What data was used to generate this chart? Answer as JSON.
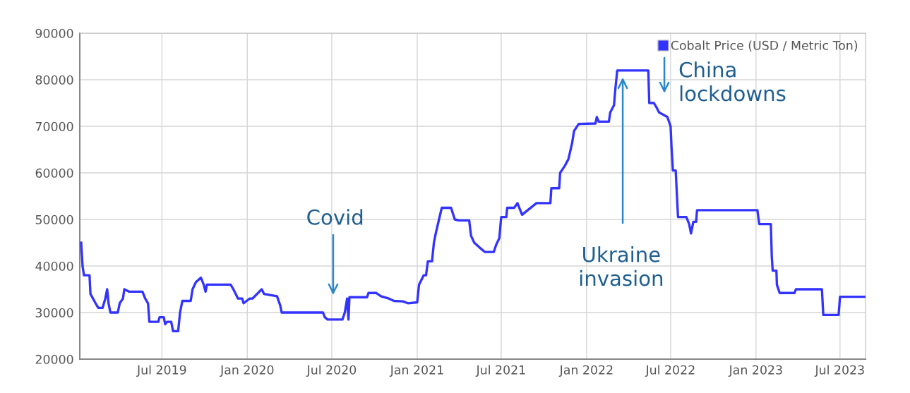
{
  "chart_data": {
    "type": "line",
    "series": [
      {
        "name": "Cobalt Price (USD / Metric Ton)",
        "color": "#3333ff",
        "x": [
          "2019-01-08",
          "2019-01-11",
          "2019-01-14",
          "2019-01-26",
          "2019-01-28",
          "2019-02-08",
          "2019-02-14",
          "2019-02-23",
          "2019-03-01",
          "2019-03-05",
          "2019-03-08",
          "2019-03-12",
          "2019-03-28",
          "2019-04-01",
          "2019-04-08",
          "2019-04-11",
          "2019-04-21",
          "2019-05-20",
          "2019-05-26",
          "2019-06-01",
          "2019-06-04",
          "2019-06-23",
          "2019-06-26",
          "2019-07-05",
          "2019-07-08",
          "2019-07-12",
          "2019-07-21",
          "2019-07-25",
          "2019-08-05",
          "2019-08-09",
          "2019-08-14",
          "2019-09-01",
          "2019-09-05",
          "2019-09-12",
          "2019-09-23",
          "2019-09-29",
          "2019-10-03",
          "2019-10-06",
          "2019-11-26",
          "2019-12-02",
          "2019-12-12",
          "2019-12-21",
          "2019-12-24",
          "2020-01-06",
          "2020-01-12",
          "2020-02-01",
          "2020-02-06",
          "2020-03-05",
          "2020-03-12",
          "2020-03-15",
          "2020-06-12",
          "2020-06-16",
          "2020-06-22",
          "2020-07-24",
          "2020-07-29",
          "2020-08-03",
          "2020-08-06",
          "2020-08-08",
          "2020-09-15",
          "2020-09-18",
          "2020-10-05",
          "2020-10-15",
          "2020-11-01",
          "2020-11-12",
          "2020-12-01",
          "2020-12-12",
          "2021-01-01",
          "2021-01-05",
          "2021-01-15",
          "2021-01-20",
          "2021-01-24",
          "2021-02-02",
          "2021-02-06",
          "2021-02-10",
          "2021-02-17",
          "2021-02-23",
          "2021-03-15",
          "2021-03-23",
          "2021-04-01",
          "2021-04-23",
          "2021-04-27",
          "2021-05-04",
          "2021-05-15",
          "2021-05-27",
          "2021-06-15",
          "2021-06-20",
          "2021-06-27",
          "2021-07-01",
          "2021-07-12",
          "2021-07-14",
          "2021-07-29",
          "2021-08-05",
          "2021-08-15",
          "2021-08-21",
          "2021-09-15",
          "2021-10-15",
          "2021-10-17",
          "2021-11-03",
          "2021-11-05",
          "2021-11-15",
          "2021-11-23",
          "2021-12-01",
          "2021-12-05",
          "2021-12-15",
          "2022-01-20",
          "2022-01-23",
          "2022-01-27",
          "2022-02-18",
          "2022-02-21",
          "2022-03-01",
          "2022-03-04",
          "2022-03-08",
          "2022-05-14",
          "2022-05-16",
          "2022-05-26",
          "2022-06-01",
          "2022-06-06",
          "2022-06-15",
          "2022-06-24",
          "2022-07-01",
          "2022-07-03",
          "2022-07-06",
          "2022-07-12",
          "2022-07-17",
          "2022-08-04",
          "2022-08-10",
          "2022-08-14",
          "2022-08-19",
          "2022-08-25",
          "2022-08-27",
          "2023-01-04",
          "2023-01-08",
          "2023-02-02",
          "2023-02-04",
          "2023-02-06",
          "2023-02-14",
          "2023-02-15",
          "2023-02-21",
          "2023-03-25",
          "2023-03-28",
          "2023-05-23",
          "2023-05-26",
          "2023-06-28",
          "2023-07-01",
          "2023-08-25"
        ],
        "values": [
          45000,
          40000,
          38000,
          38000,
          34000,
          32000,
          31000,
          31000,
          33000,
          35000,
          32000,
          30000,
          30000,
          32000,
          33000,
          35000,
          34500,
          34500,
          33000,
          32000,
          28000,
          28000,
          29000,
          29000,
          27500,
          28000,
          28000,
          26000,
          26000,
          30000,
          32500,
          32500,
          35000,
          36500,
          37500,
          36000,
          34500,
          36000,
          36000,
          35000,
          33000,
          33000,
          32000,
          33000,
          33000,
          35000,
          34000,
          33500,
          31500,
          30000,
          30000,
          29000,
          28500,
          28500,
          30000,
          33000,
          28500,
          33300,
          33300,
          34200,
          34200,
          33500,
          33000,
          32500,
          32400,
          32000,
          32200,
          36000,
          38000,
          38000,
          41000,
          41000,
          45000,
          47000,
          50000,
          52500,
          52500,
          50000,
          49800,
          49800,
          46500,
          45000,
          44000,
          43000,
          43000,
          44500,
          46000,
          50500,
          50500,
          52500,
          52500,
          53500,
          51000,
          51500,
          53500,
          53500,
          56700,
          56700,
          60000,
          61500,
          63000,
          66500,
          69000,
          70500,
          70600,
          72000,
          71000,
          71000,
          73000,
          74500,
          78000,
          82000,
          82000,
          75000,
          75000,
          74000,
          73000,
          72500,
          72000,
          70000,
          65500,
          60500,
          60500,
          50500,
          50500,
          49000,
          47000,
          49500,
          49500,
          52000,
          52000,
          49000,
          49000,
          42000,
          39000,
          39000,
          36000,
          34200,
          34200,
          35000,
          35000,
          29500,
          29500,
          33400,
          33400
        ]
      }
    ],
    "xlim": [
      "2019-01-05",
      "2023-08-25"
    ],
    "xticks": [
      {
        "value": "2019-07-01",
        "label": "Jul 2019"
      },
      {
        "value": "2020-01-01",
        "label": "Jan 2020"
      },
      {
        "value": "2020-07-01",
        "label": "Jul 2020"
      },
      {
        "value": "2021-01-01",
        "label": "Jan 2021"
      },
      {
        "value": "2021-07-01",
        "label": "Jul 2021"
      },
      {
        "value": "2022-01-01",
        "label": "Jan 2022"
      },
      {
        "value": "2022-07-01",
        "label": "Jul 2022"
      },
      {
        "value": "2023-01-01",
        "label": "Jan 2023"
      },
      {
        "value": "2023-07-01",
        "label": "Jul 2023"
      }
    ],
    "ylim": [
      20000,
      90000
    ],
    "yticks": [
      20000,
      30000,
      40000,
      50000,
      60000,
      70000,
      80000,
      90000
    ],
    "grid": true,
    "legend": "top right",
    "marker": "none",
    "line_style": "solid",
    "annotations": [
      "Covid",
      "Ukraine\ninvasion",
      "China\nlockdowns"
    ]
  }
}
